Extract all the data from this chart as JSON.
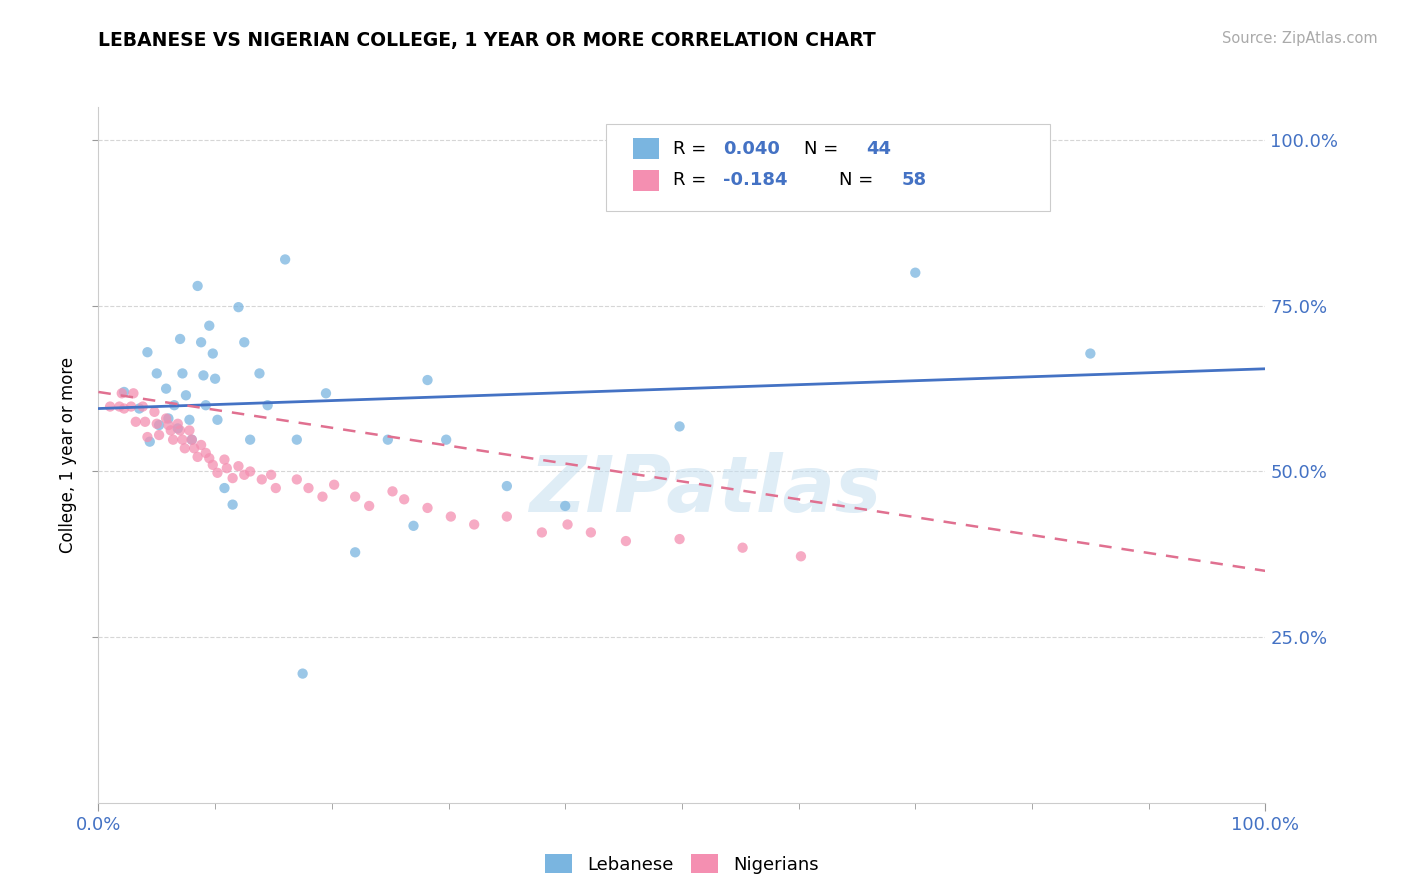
{
  "title": "LEBANESE VS NIGERIAN COLLEGE, 1 YEAR OR MORE CORRELATION CHART",
  "source_text": "Source: ZipAtlas.com",
  "ylabel": "College, 1 year or more",
  "xlim": [
    0.0,
    1.0
  ],
  "ylim": [
    0.0,
    1.05
  ],
  "x_tick_labels": [
    "0.0%",
    "100.0%"
  ],
  "y_tick_labels": [
    "25.0%",
    "50.0%",
    "75.0%",
    "100.0%"
  ],
  "y_tick_positions": [
    0.25,
    0.5,
    0.75,
    1.0
  ],
  "watermark": "ZIPatlas",
  "blue_color": "#7ab5e0",
  "pink_color": "#f48fb1",
  "line_blue": "#4472c4",
  "line_pink": "#e07090",
  "line_pink_dashed": "#c0a0a8",
  "R_color": "#4472c4",
  "R_lebanese": 0.04,
  "N_lebanese": 44,
  "R_nigerian": -0.184,
  "N_nigerian": 58,
  "leb_trend_x": [
    0.0,
    1.0
  ],
  "leb_trend_y": [
    0.595,
    0.655
  ],
  "nig_trend_x": [
    0.0,
    1.0
  ],
  "nig_trend_y": [
    0.62,
    0.35
  ],
  "lebanese_scatter_x": [
    0.022,
    0.035,
    0.042,
    0.044,
    0.05,
    0.052,
    0.058,
    0.06,
    0.065,
    0.068,
    0.07,
    0.072,
    0.075,
    0.078,
    0.08,
    0.085,
    0.088,
    0.09,
    0.092,
    0.095,
    0.098,
    0.1,
    0.102,
    0.108,
    0.115,
    0.12,
    0.125,
    0.13,
    0.138,
    0.145,
    0.16,
    0.17,
    0.175,
    0.195,
    0.22,
    0.248,
    0.27,
    0.282,
    0.298,
    0.35,
    0.4,
    0.498,
    0.7,
    0.85
  ],
  "lebanese_scatter_y": [
    0.62,
    0.595,
    0.68,
    0.545,
    0.648,
    0.57,
    0.625,
    0.58,
    0.6,
    0.565,
    0.7,
    0.648,
    0.615,
    0.578,
    0.548,
    0.78,
    0.695,
    0.645,
    0.6,
    0.72,
    0.678,
    0.64,
    0.578,
    0.475,
    0.45,
    0.748,
    0.695,
    0.548,
    0.648,
    0.6,
    0.82,
    0.548,
    0.195,
    0.618,
    0.378,
    0.548,
    0.418,
    0.638,
    0.548,
    0.478,
    0.448,
    0.568,
    0.8,
    0.678
  ],
  "nigerian_scatter_x": [
    0.01,
    0.018,
    0.02,
    0.022,
    0.028,
    0.03,
    0.032,
    0.038,
    0.04,
    0.042,
    0.048,
    0.05,
    0.052,
    0.058,
    0.06,
    0.062,
    0.064,
    0.068,
    0.07,
    0.072,
    0.074,
    0.078,
    0.08,
    0.082,
    0.085,
    0.088,
    0.092,
    0.095,
    0.098,
    0.102,
    0.108,
    0.11,
    0.115,
    0.12,
    0.125,
    0.13,
    0.14,
    0.148,
    0.152,
    0.17,
    0.18,
    0.192,
    0.202,
    0.22,
    0.232,
    0.252,
    0.262,
    0.282,
    0.302,
    0.322,
    0.35,
    0.38,
    0.402,
    0.422,
    0.452,
    0.498,
    0.552,
    0.602
  ],
  "nigerian_scatter_y": [
    0.598,
    0.598,
    0.618,
    0.595,
    0.598,
    0.618,
    0.575,
    0.598,
    0.575,
    0.552,
    0.59,
    0.572,
    0.555,
    0.58,
    0.57,
    0.562,
    0.548,
    0.572,
    0.562,
    0.548,
    0.535,
    0.562,
    0.548,
    0.535,
    0.522,
    0.54,
    0.528,
    0.52,
    0.51,
    0.498,
    0.518,
    0.505,
    0.49,
    0.508,
    0.495,
    0.5,
    0.488,
    0.495,
    0.475,
    0.488,
    0.475,
    0.462,
    0.48,
    0.462,
    0.448,
    0.47,
    0.458,
    0.445,
    0.432,
    0.42,
    0.432,
    0.408,
    0.42,
    0.408,
    0.395,
    0.398,
    0.385,
    0.372
  ]
}
